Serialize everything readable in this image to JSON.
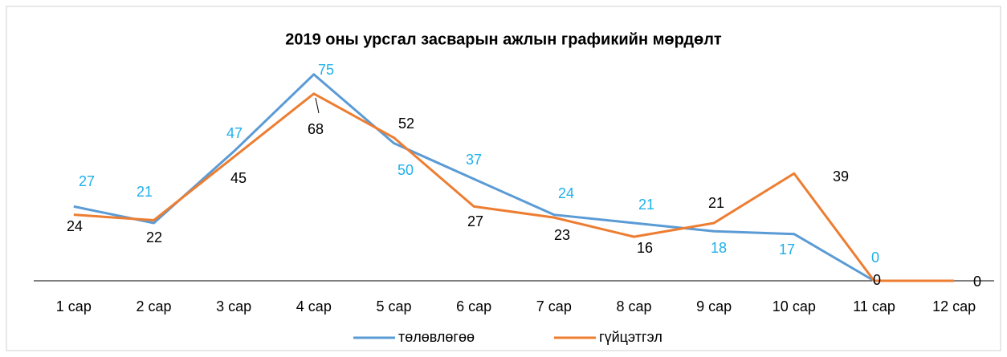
{
  "chart_data": {
    "type": "line",
    "title": "2019 оны урсгал засварын ажлын графикийн мөрдөлт",
    "categories": [
      "1 сар",
      "2 сар",
      "3 сар",
      "4 сар",
      "5 сар",
      "6 сар",
      "7 сар",
      "8 сар",
      "9 сар",
      "10 сар",
      "11 сар",
      "12 сар"
    ],
    "series": [
      {
        "name": "төлөвлөгөө",
        "color": "#5b9bd5",
        "label_color": "#1fb0e8",
        "values": [
          27,
          21,
          47,
          75,
          50,
          37,
          24,
          21,
          18,
          17,
          0,
          null
        ]
      },
      {
        "name": "гүйцэтгэл",
        "color": "#ed7d31",
        "label_color": "#000000",
        "values": [
          24,
          22,
          45,
          68,
          52,
          27,
          23,
          16,
          21,
          39,
          0,
          0
        ]
      }
    ],
    "ylim": [
      0,
      80
    ],
    "legend": "bottom"
  }
}
